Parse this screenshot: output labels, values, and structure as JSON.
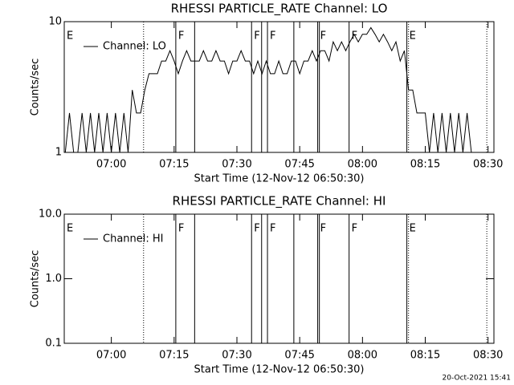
{
  "chart_data": [
    {
      "type": "line",
      "title": "RHESSI PARTICLE_RATE Channel: LO",
      "xlabel": "Start Time (12-Nov-12 06:50:30)",
      "ylabel": "Counts/sec",
      "log_y": true,
      "ylim": [
        1,
        10
      ],
      "yticks": [
        1,
        10
      ],
      "xlim": [
        408.75,
        511.4
      ],
      "xticks": [
        {
          "value": 420,
          "label": "07:00"
        },
        {
          "value": 435,
          "label": "07:15"
        },
        {
          "value": 450,
          "label": "07:30"
        },
        {
          "value": 465,
          "label": "07:45"
        },
        {
          "value": 480,
          "label": "08:00"
        },
        {
          "value": 495,
          "label": "08:15"
        },
        {
          "value": 510,
          "label": "08:30"
        }
      ],
      "flags": [
        {
          "x": 408.75,
          "label": "E",
          "style": "none"
        },
        {
          "x": 427.7,
          "style": "dotted"
        },
        {
          "x": 435.4,
          "label": "F",
          "style": "solid"
        },
        {
          "x": 439.9,
          "style": "solid"
        },
        {
          "x": 453.5,
          "label": "F",
          "style": "solid"
        },
        {
          "x": 455.9,
          "style": "solid"
        },
        {
          "x": 457.3,
          "label": "F",
          "style": "solid"
        },
        {
          "x": 463.6,
          "style": "solid"
        },
        {
          "x": 469.3,
          "label": "F",
          "style": "solid"
        },
        {
          "x": 469.7,
          "style": "solid"
        },
        {
          "x": 476.8,
          "label": "F",
          "style": "solid"
        },
        {
          "x": 490.6,
          "label": "E",
          "style": "solid"
        },
        {
          "x": 491.0,
          "style": "dotted"
        },
        {
          "x": 509.7,
          "style": "dotted"
        }
      ],
      "x": [
        409,
        410,
        411,
        412,
        413,
        414,
        415,
        416,
        417,
        418,
        419,
        420,
        421,
        422,
        423,
        424,
        425,
        426,
        427,
        428,
        429,
        430,
        431,
        432,
        433,
        434,
        435,
        436,
        437,
        438,
        439,
        440,
        441,
        442,
        443,
        444,
        445,
        446,
        447,
        448,
        449,
        450,
        451,
        452,
        453,
        454,
        455,
        456,
        457,
        458,
        459,
        460,
        461,
        462,
        463,
        464,
        465,
        466,
        467,
        468,
        469,
        470,
        471,
        472,
        473,
        474,
        475,
        476,
        477,
        478,
        479,
        480,
        481,
        482,
        483,
        484,
        485,
        486,
        487,
        488,
        489,
        490,
        491,
        492,
        493,
        494,
        495,
        496,
        497,
        498,
        499,
        500,
        501,
        502,
        503,
        504,
        505,
        506
      ],
      "series": [
        {
          "name": "Channel: LO",
          "color": "#000000",
          "values": [
            1,
            2,
            1,
            1,
            2,
            1,
            2,
            1,
            2,
            1,
            2,
            1,
            2,
            1,
            2,
            1,
            3,
            2,
            2,
            3,
            4,
            4,
            4,
            5,
            5,
            6,
            5,
            4,
            5,
            6,
            5,
            5,
            5,
            6,
            5,
            5,
            6,
            5,
            5,
            4,
            5,
            5,
            6,
            5,
            5,
            4,
            5,
            4,
            5,
            4,
            4,
            5,
            4,
            4,
            5,
            5,
            4,
            5,
            5,
            6,
            5,
            6,
            6,
            5,
            7,
            6,
            7,
            6,
            7,
            8,
            7,
            8,
            8,
            9,
            8,
            7,
            8,
            7,
            6,
            7,
            5,
            6,
            3,
            3,
            2,
            2,
            2,
            1,
            2,
            1,
            2,
            1,
            2,
            1,
            2,
            1,
            2,
            1
          ]
        }
      ]
    },
    {
      "type": "line",
      "title": "RHESSI PARTICLE_RATE Channel: HI",
      "xlabel": "Start Time (12-Nov-12 06:50:30)",
      "ylabel": "Counts/sec",
      "log_y": true,
      "ylim": [
        0.1,
        10
      ],
      "yticks": [
        0.1,
        {
          "value": 1,
          "label": "1.0"
        },
        {
          "value": 10,
          "label": "10.0"
        }
      ],
      "xlim": [
        408.75,
        511.4
      ],
      "xticks": [
        {
          "value": 420,
          "label": "07:00"
        },
        {
          "value": 435,
          "label": "07:15"
        },
        {
          "value": 450,
          "label": "07:30"
        },
        {
          "value": 465,
          "label": "07:45"
        },
        {
          "value": 480,
          "label": "08:00"
        },
        {
          "value": 495,
          "label": "08:15"
        },
        {
          "value": 510,
          "label": "08:30"
        }
      ],
      "flags": [
        {
          "x": 408.75,
          "label": "E",
          "style": "none"
        },
        {
          "x": 427.7,
          "style": "dotted"
        },
        {
          "x": 435.4,
          "label": "F",
          "style": "solid"
        },
        {
          "x": 439.9,
          "style": "solid"
        },
        {
          "x": 453.5,
          "label": "F",
          "style": "solid"
        },
        {
          "x": 455.9,
          "style": "solid"
        },
        {
          "x": 457.3,
          "label": "F",
          "style": "solid"
        },
        {
          "x": 463.6,
          "style": "solid"
        },
        {
          "x": 469.3,
          "label": "F",
          "style": "solid"
        },
        {
          "x": 469.7,
          "style": "solid"
        },
        {
          "x": 476.8,
          "label": "F",
          "style": "solid"
        },
        {
          "x": 490.6,
          "label": "E",
          "style": "solid"
        },
        {
          "x": 491.0,
          "style": "dotted"
        },
        {
          "x": 509.7,
          "style": "dotted"
        }
      ],
      "x": [],
      "series": [
        {
          "name": "Channel: HI",
          "color": "#000000",
          "values": []
        }
      ]
    }
  ],
  "footer": "20-Oct-2021 15:41"
}
